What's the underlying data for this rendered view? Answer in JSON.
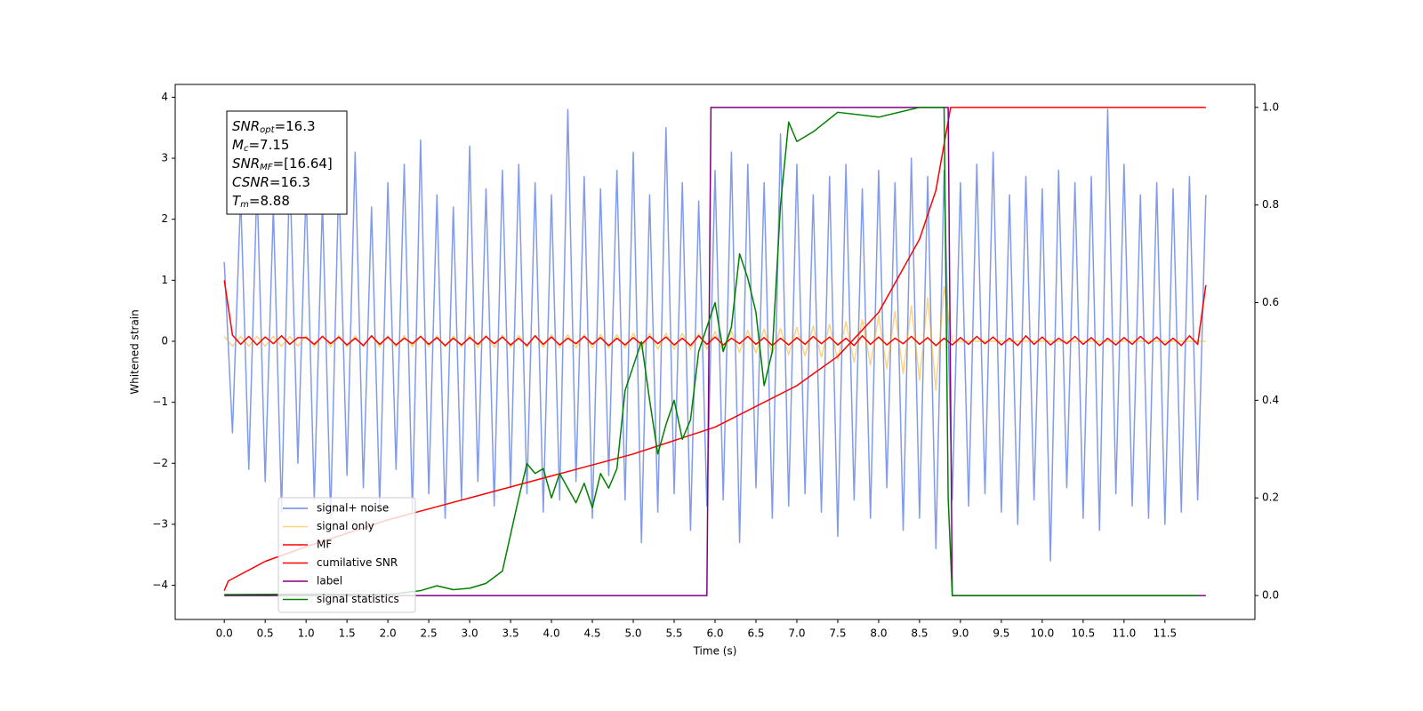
{
  "chart_data": {
    "type": "line",
    "xlabel": "Time (s)",
    "ylabel": "Whitened strain",
    "xlim": [
      -0.6,
      12.6
    ],
    "ylim": [
      -4.56,
      4.21
    ],
    "y2lim": [
      -0.049,
      1.047
    ],
    "xticks": [
      {
        "value": 0,
        "label": "0.0"
      },
      {
        "value": 0.5,
        "label": "0.5"
      },
      {
        "value": 1,
        "label": "1.0"
      },
      {
        "value": 1.5,
        "label": "1.5"
      },
      {
        "value": 2,
        "label": "2.0"
      },
      {
        "value": 2.5,
        "label": "2.5"
      },
      {
        "value": 3,
        "label": "3.0"
      },
      {
        "value": 3.5,
        "label": "3.5"
      },
      {
        "value": 4,
        "label": "4.0"
      },
      {
        "value": 4.5,
        "label": "4.5"
      },
      {
        "value": 5,
        "label": "5.0"
      },
      {
        "value": 5.5,
        "label": "5.5"
      },
      {
        "value": 6,
        "label": "6.0"
      },
      {
        "value": 6.5,
        "label": "6.5"
      },
      {
        "value": 7,
        "label": "7.0"
      },
      {
        "value": 7.5,
        "label": "7.5"
      },
      {
        "value": 8,
        "label": "8.0"
      },
      {
        "value": 8.5,
        "label": "8.5"
      },
      {
        "value": 9,
        "label": "9.0"
      },
      {
        "value": 9.5,
        "label": "9.5"
      },
      {
        "value": 10,
        "label": "10.0"
      },
      {
        "value": 10.5,
        "label": "10.5"
      },
      {
        "value": 11,
        "label": "11.0"
      },
      {
        "value": 11.5,
        "label": "11.5"
      }
    ],
    "yticks": [
      {
        "value": -4,
        "label": "−4"
      },
      {
        "value": -3,
        "label": "−3"
      },
      {
        "value": -2,
        "label": "−2"
      },
      {
        "value": -1,
        "label": "−1"
      },
      0,
      1,
      2,
      3,
      4
    ],
    "y2ticks": [
      {
        "value": 0,
        "label": "0.0"
      },
      {
        "value": 0.2,
        "label": "0.2"
      },
      {
        "value": 0.4,
        "label": "0.4"
      },
      {
        "value": 0.6,
        "label": "0.6"
      },
      {
        "value": 0.8,
        "label": "0.8"
      },
      {
        "value": 1,
        "label": "1.0"
      }
    ],
    "legend": "lower left",
    "annotation": [
      {
        "text": "SNR",
        "sub": "opt",
        "value": "=16.3"
      },
      {
        "text": "M",
        "sub": "c",
        "value": "=7.15"
      },
      {
        "text": "SNR",
        "sub": "MF",
        "value": "=[16.64]"
      },
      {
        "text": "CSNR",
        "value": "=16.3"
      },
      {
        "text": "T",
        "sub": "m",
        "value": "=8.88"
      }
    ],
    "x": [
      0,
      0.1,
      0.2,
      0.3,
      0.4,
      0.5,
      0.6,
      0.7,
      0.8,
      0.9,
      1,
      1.1,
      1.2,
      1.3,
      1.4,
      1.5,
      1.6,
      1.7,
      1.8,
      1.9,
      2,
      2.1,
      2.2,
      2.3,
      2.4,
      2.5,
      2.6,
      2.7,
      2.8,
      2.9,
      3,
      3.1,
      3.2,
      3.3,
      3.4,
      3.5,
      3.6,
      3.7,
      3.8,
      3.9,
      4,
      4.1,
      4.2,
      4.3,
      4.4,
      4.5,
      4.6,
      4.7,
      4.8,
      4.9,
      5,
      5.1,
      5.2,
      5.3,
      5.4,
      5.5,
      5.6,
      5.7,
      5.8,
      5.9,
      6,
      6.1,
      6.2,
      6.3,
      6.4,
      6.5,
      6.6,
      6.7,
      6.8,
      6.9,
      7,
      7.1,
      7.2,
      7.3,
      7.4,
      7.5,
      7.6,
      7.7,
      7.8,
      7.9,
      8,
      8.1,
      8.2,
      8.3,
      8.4,
      8.5,
      8.6,
      8.7,
      8.8,
      8.9,
      9,
      9.1,
      9.2,
      9.3,
      9.4,
      9.5,
      9.6,
      9.7,
      9.8,
      9.9,
      10,
      10.1,
      10.2,
      10.3,
      10.4,
      10.5,
      10.6,
      10.7,
      10.8,
      10.9,
      11,
      11.1,
      11.2,
      11.3,
      11.4,
      11.5,
      11.6,
      11.7,
      11.8,
      11.9,
      12
    ],
    "series": [
      {
        "name": "signal+ noise",
        "color": "#6b8ae6",
        "values": [
          1.3,
          -1.5,
          2.4,
          -2.1,
          2.6,
          -2.3,
          2.2,
          -2.8,
          2.9,
          -2.0,
          2.5,
          -2.6,
          2.3,
          -2.9,
          2.7,
          -2.2,
          3.1,
          -2.4,
          2.2,
          -2.7,
          2.6,
          -2.1,
          2.9,
          -2.8,
          3.3,
          -2.5,
          2.4,
          -2.9,
          2.2,
          -2.6,
          3.2,
          -2.3,
          2.5,
          -2.7,
          2.8,
          -2.4,
          2.9,
          -2.5,
          2.6,
          -2.8,
          2.4,
          -2.6,
          3.8,
          -2.3,
          2.7,
          -2.9,
          2.5,
          -2.2,
          2.8,
          -2.6,
          3.1,
          -3.3,
          2.4,
          -2.8,
          3.5,
          -2.5,
          2.6,
          -3.1,
          2.3,
          -2.7,
          2.8,
          -2.6,
          3.1,
          -3.3,
          2.9,
          -2.4,
          2.6,
          -2.9,
          3.4,
          -2.7,
          2.9,
          -2.5,
          2.4,
          -2.8,
          2.7,
          -3.2,
          2.9,
          -2.6,
          2.5,
          -2.9,
          2.8,
          -2.4,
          2.6,
          -3.1,
          3.0,
          -2.9,
          2.7,
          -3.4,
          2.8,
          -2.6,
          2.6,
          -2.7,
          2.9,
          -2.5,
          3.1,
          -2.8,
          2.4,
          -3.0,
          2.7,
          -2.6,
          2.5,
          -3.6,
          2.8,
          -2.4,
          2.6,
          -2.9,
          2.7,
          -3.1,
          3.8,
          -2.5,
          2.9,
          -2.7,
          2.4,
          -2.9,
          2.6,
          -3.0,
          2.5,
          -2.8,
          2.7,
          -2.6,
          2.4
        ]
      },
      {
        "name": "signal only",
        "color": "#ffa500",
        "values": [
          0.08,
          -0.08,
          0.08,
          -0.08,
          0.08,
          -0.08,
          0.08,
          -0.08,
          0.08,
          -0.08,
          0.09,
          -0.09,
          0.09,
          -0.09,
          0.09,
          -0.09,
          0.09,
          -0.09,
          0.09,
          -0.09,
          0.09,
          -0.09,
          0.09,
          -0.09,
          0.09,
          -0.09,
          0.09,
          -0.09,
          0.09,
          -0.09,
          0.1,
          -0.1,
          0.1,
          -0.1,
          0.1,
          -0.1,
          0.1,
          -0.1,
          0.1,
          -0.1,
          0.11,
          -0.11,
          0.11,
          -0.11,
          0.11,
          -0.11,
          0.11,
          -0.11,
          0.11,
          -0.11,
          0.13,
          -0.13,
          0.13,
          -0.13,
          0.13,
          -0.13,
          0.13,
          -0.13,
          0.13,
          -0.13,
          0.16,
          -0.17,
          0.17,
          -0.18,
          0.18,
          -0.19,
          0.2,
          -0.2,
          0.21,
          -0.22,
          0.23,
          -0.24,
          0.25,
          -0.26,
          0.28,
          -0.3,
          0.32,
          -0.34,
          0.36,
          -0.39,
          0.42,
          -0.45,
          0.49,
          -0.53,
          0.58,
          -0.64,
          0.71,
          -0.8,
          0.9,
          0,
          0,
          0,
          0,
          0,
          0,
          0,
          0,
          0,
          0,
          0,
          0,
          0,
          0,
          0,
          0,
          0,
          0,
          0,
          0,
          0,
          0,
          0,
          0,
          0,
          0,
          0,
          0,
          0,
          0,
          0,
          0
        ]
      },
      {
        "name": "MF",
        "color": "#ff0000",
        "values": [
          1.0,
          0.1,
          -0.05,
          0.08,
          -0.06,
          0.07,
          -0.04,
          0.09,
          -0.05,
          0.06,
          0.06,
          -0.05,
          0.08,
          -0.04,
          0.07,
          -0.06,
          0.05,
          -0.07,
          0.09,
          -0.05,
          0.07,
          -0.06,
          0.05,
          -0.04,
          0.08,
          -0.05,
          0.06,
          -0.07,
          0.05,
          -0.06,
          0.06,
          -0.05,
          0.08,
          -0.04,
          0.07,
          -0.06,
          0.05,
          -0.07,
          0.09,
          -0.05,
          0.07,
          -0.06,
          0.05,
          -0.04,
          0.08,
          -0.05,
          0.06,
          -0.07,
          0.05,
          -0.06,
          0.06,
          -0.05,
          0.08,
          -0.04,
          0.07,
          -0.06,
          0.05,
          -0.07,
          0.09,
          -0.05,
          0.07,
          -0.06,
          0.05,
          -0.04,
          0.08,
          -0.05,
          0.06,
          -0.07,
          0.05,
          -0.06,
          0.06,
          -0.05,
          0.08,
          -0.04,
          0.07,
          -0.06,
          0.05,
          -0.07,
          0.09,
          -0.05,
          0.07,
          -0.06,
          0.05,
          -0.04,
          0.08,
          -0.05,
          0.06,
          -0.07,
          0.05,
          -0.06,
          0.06,
          -0.05,
          0.08,
          -0.04,
          0.07,
          -0.06,
          0.05,
          -0.07,
          0.09,
          -0.05,
          0.07,
          -0.06,
          0.05,
          -0.04,
          0.08,
          -0.05,
          0.06,
          -0.07,
          0.05,
          -0.06,
          0.06,
          -0.05,
          0.08,
          -0.04,
          0.07,
          -0.06,
          0.05,
          -0.07,
          0.09,
          -0.05,
          0.92
        ]
      },
      {
        "name": "cumilative SNR",
        "color": "#ff0000",
        "axis": "y2",
        "x": [
          0,
          0.05,
          0.5,
          1,
          2,
          3,
          4,
          5,
          6,
          7,
          7.5,
          8,
          8.5,
          8.7,
          8.88,
          9,
          12
        ],
        "values": [
          0.01,
          0.03,
          0.07,
          0.1,
          0.155,
          0.2,
          0.245,
          0.29,
          0.345,
          0.43,
          0.49,
          0.58,
          0.73,
          0.83,
          1.0,
          1.0,
          1.0
        ]
      },
      {
        "name": "label",
        "color": "#800080",
        "axis": "y2",
        "x": [
          0,
          5.9,
          5.95,
          8.85,
          8.9,
          12
        ],
        "values": [
          0,
          0,
          1,
          1,
          0,
          0
        ]
      },
      {
        "name": "signal statistics",
        "color": "#008000",
        "axis": "y2",
        "x": [
          0,
          1,
          2,
          2.4,
          2.6,
          2.8,
          3.0,
          3.2,
          3.4,
          3.6,
          3.7,
          3.8,
          3.9,
          4.0,
          4.1,
          4.3,
          4.4,
          4.5,
          4.6,
          4.7,
          4.8,
          4.9,
          5.0,
          5.1,
          5.2,
          5.3,
          5.4,
          5.5,
          5.6,
          5.7,
          5.8,
          5.9,
          6.0,
          6.1,
          6.2,
          6.3,
          6.4,
          6.5,
          6.6,
          6.7,
          6.8,
          6.9,
          7.0,
          7.2,
          7.5,
          8.0,
          8.5,
          8.8,
          8.85,
          8.9,
          11.9
        ],
        "values": [
          0.002,
          0.003,
          0.002,
          0.01,
          0.02,
          0.012,
          0.015,
          0.025,
          0.05,
          0.2,
          0.27,
          0.25,
          0.26,
          0.2,
          0.25,
          0.19,
          0.23,
          0.18,
          0.25,
          0.22,
          0.26,
          0.42,
          0.47,
          0.52,
          0.4,
          0.29,
          0.35,
          0.4,
          0.32,
          0.36,
          0.5,
          0.55,
          0.6,
          0.5,
          0.55,
          0.7,
          0.65,
          0.58,
          0.43,
          0.5,
          0.8,
          0.97,
          0.93,
          0.95,
          0.99,
          0.98,
          1.0,
          1.0,
          0.2,
          0.0,
          0.0
        ]
      }
    ]
  }
}
